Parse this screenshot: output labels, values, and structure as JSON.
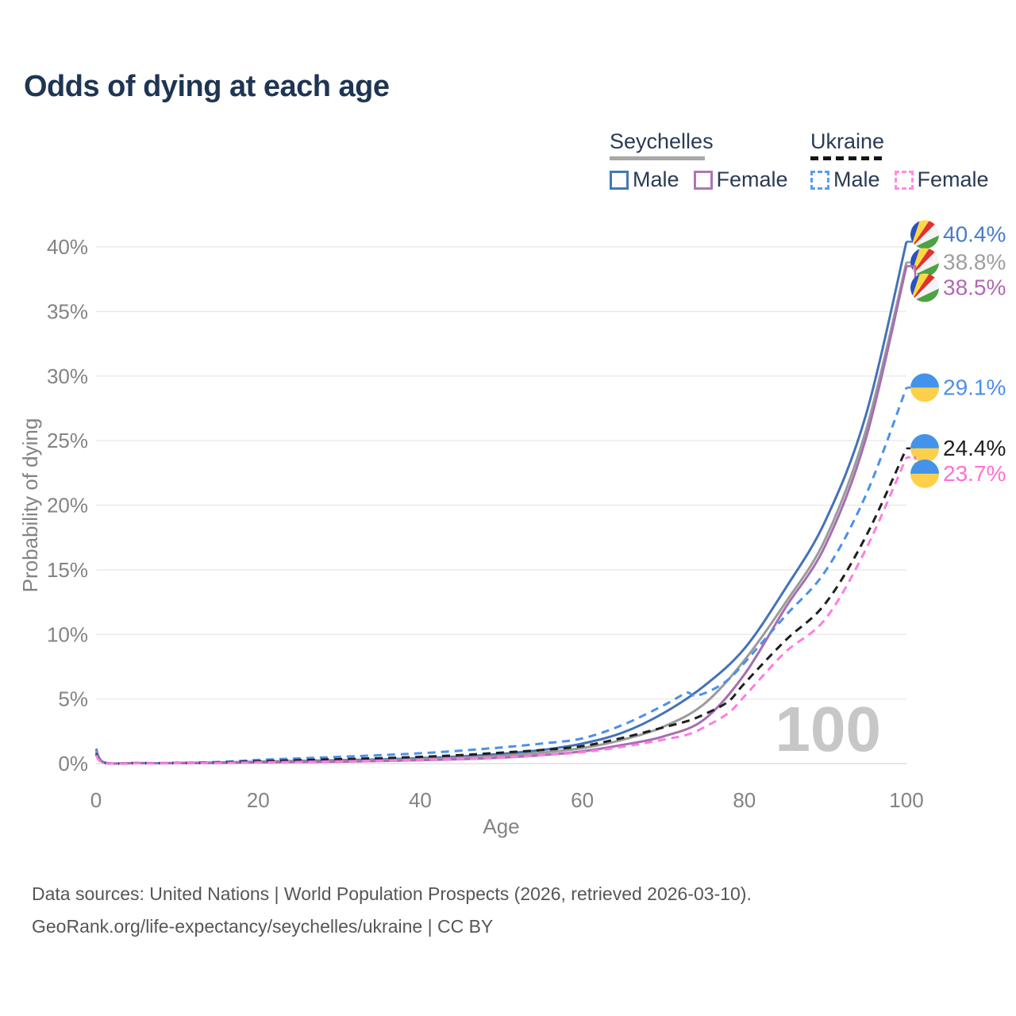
{
  "title": "Odds of dying at each age",
  "legend": {
    "groups": [
      {
        "name": "Seychelles",
        "line_style": "solid",
        "underline_color": "#a8a8a8",
        "items": [
          {
            "label": "Male",
            "color": "#4577b9",
            "dashed": false
          },
          {
            "label": "Female",
            "color": "#b073b8",
            "dashed": false
          }
        ]
      },
      {
        "name": "Ukraine",
        "line_style": "dashed",
        "underline_color": "#151515",
        "items": [
          {
            "label": "Male",
            "color": "#5b9bf5",
            "dashed": true
          },
          {
            "label": "Female",
            "color": "#ff8ae4",
            "dashed": true
          }
        ]
      }
    ]
  },
  "watermark": "100",
  "footer": {
    "line1": "Data sources: United Nations | World Population Prospects (2026, retrieved 2026-03-10).",
    "line2": "GeoRank.org/life-expectancy/seychelles/ukraine | CC BY"
  },
  "chart_data": {
    "type": "line",
    "title": "Odds of dying at each age",
    "xlabel": "Age",
    "ylabel": "Probability of dying",
    "xlim": [
      0,
      100
    ],
    "ylim": [
      0,
      40
    ],
    "grid": true,
    "legend_position": "top-right",
    "xticks": [
      0,
      20,
      40,
      60,
      80,
      100
    ],
    "yticks": [
      {
        "value": 0,
        "label": "0%"
      },
      {
        "value": 5,
        "label": "5%"
      },
      {
        "value": 10,
        "label": "10%"
      },
      {
        "value": 15,
        "label": "15%"
      },
      {
        "value": 20,
        "label": "20%"
      },
      {
        "value": 25,
        "label": "25%"
      },
      {
        "value": 30,
        "label": "30%"
      },
      {
        "value": 35,
        "label": "35%"
      },
      {
        "value": 40,
        "label": "40%"
      }
    ],
    "axis_color": "#838383",
    "grid_color": "#ebebeb",
    "series": [
      {
        "name": "Seychelles Male",
        "country": "Seychelles",
        "sex": "male",
        "color": "#4472b8",
        "dashed": false,
        "points": [
          [
            0,
            1.15
          ],
          [
            1,
            0.1
          ],
          [
            5,
            0.04
          ],
          [
            10,
            0.04
          ],
          [
            15,
            0.08
          ],
          [
            20,
            0.15
          ],
          [
            25,
            0.2
          ],
          [
            30,
            0.26
          ],
          [
            35,
            0.32
          ],
          [
            40,
            0.42
          ],
          [
            45,
            0.55
          ],
          [
            50,
            0.75
          ],
          [
            55,
            1.05
          ],
          [
            60,
            1.55
          ],
          [
            65,
            2.4
          ],
          [
            70,
            3.9
          ],
          [
            75,
            6.0
          ],
          [
            80,
            8.9
          ],
          [
            85,
            13.5
          ],
          [
            90,
            18.8
          ],
          [
            95,
            27.0
          ],
          [
            100,
            40.4
          ]
        ]
      },
      {
        "name": "Seychelles Both sexes",
        "country": "Seychelles",
        "sex": "both",
        "color": "#9b9b9b",
        "dashed": false,
        "points": [
          [
            0,
            1.0
          ],
          [
            1,
            0.09
          ],
          [
            5,
            0.035
          ],
          [
            10,
            0.035
          ],
          [
            15,
            0.06
          ],
          [
            20,
            0.12
          ],
          [
            25,
            0.16
          ],
          [
            30,
            0.2
          ],
          [
            35,
            0.26
          ],
          [
            40,
            0.33
          ],
          [
            45,
            0.44
          ],
          [
            50,
            0.6
          ],
          [
            55,
            0.85
          ],
          [
            60,
            1.2
          ],
          [
            65,
            1.85
          ],
          [
            70,
            2.85
          ],
          [
            75,
            4.6
          ],
          [
            80,
            8.0
          ],
          [
            85,
            12.4
          ],
          [
            90,
            17.4
          ],
          [
            95,
            25.8
          ],
          [
            100,
            38.8
          ]
        ]
      },
      {
        "name": "Seychelles Female",
        "country": "Seychelles",
        "sex": "female",
        "color": "#a76db1",
        "dashed": false,
        "points": [
          [
            0,
            0.9
          ],
          [
            1,
            0.08
          ],
          [
            5,
            0.03
          ],
          [
            10,
            0.03
          ],
          [
            15,
            0.05
          ],
          [
            20,
            0.09
          ],
          [
            25,
            0.12
          ],
          [
            30,
            0.15
          ],
          [
            35,
            0.2
          ],
          [
            40,
            0.26
          ],
          [
            45,
            0.34
          ],
          [
            50,
            0.46
          ],
          [
            55,
            0.65
          ],
          [
            60,
            0.95
          ],
          [
            65,
            1.45
          ],
          [
            70,
            2.1
          ],
          [
            75,
            3.4
          ],
          [
            80,
            6.9
          ],
          [
            85,
            12.0
          ],
          [
            90,
            16.9
          ],
          [
            95,
            25.2
          ],
          [
            100,
            38.5
          ]
        ]
      },
      {
        "name": "Ukraine Male",
        "country": "Ukraine",
        "sex": "male",
        "color": "#4b90ea",
        "dashed": true,
        "points": [
          [
            0,
            0.85
          ],
          [
            1,
            0.07
          ],
          [
            5,
            0.04
          ],
          [
            10,
            0.05
          ],
          [
            15,
            0.12
          ],
          [
            20,
            0.28
          ],
          [
            25,
            0.4
          ],
          [
            30,
            0.52
          ],
          [
            35,
            0.65
          ],
          [
            40,
            0.8
          ],
          [
            45,
            1.0
          ],
          [
            50,
            1.25
          ],
          [
            55,
            1.55
          ],
          [
            60,
            1.95
          ],
          [
            65,
            3.0
          ],
          [
            70,
            4.5
          ],
          [
            72,
            5.2
          ],
          [
            73,
            5.5
          ],
          [
            74,
            5.25
          ],
          [
            76,
            5.7
          ],
          [
            78,
            6.5
          ],
          [
            80,
            7.8
          ],
          [
            85,
            11.4
          ],
          [
            90,
            14.9
          ],
          [
            95,
            20.8
          ],
          [
            100,
            29.1
          ]
        ]
      },
      {
        "name": "Ukraine Both sexes",
        "country": "Ukraine",
        "sex": "both",
        "color": "#1f1f1f",
        "dashed": true,
        "points": [
          [
            0,
            0.75
          ],
          [
            1,
            0.06
          ],
          [
            5,
            0.03
          ],
          [
            10,
            0.04
          ],
          [
            15,
            0.08
          ],
          [
            20,
            0.18
          ],
          [
            25,
            0.26
          ],
          [
            30,
            0.34
          ],
          [
            35,
            0.42
          ],
          [
            40,
            0.52
          ],
          [
            45,
            0.66
          ],
          [
            50,
            0.85
          ],
          [
            55,
            1.05
          ],
          [
            60,
            1.35
          ],
          [
            65,
            2.0
          ],
          [
            70,
            2.8
          ],
          [
            73,
            3.3
          ],
          [
            75,
            3.8
          ],
          [
            78,
            4.8
          ],
          [
            80,
            6.2
          ],
          [
            85,
            9.5
          ],
          [
            90,
            12.4
          ],
          [
            95,
            17.6
          ],
          [
            100,
            24.4
          ]
        ]
      },
      {
        "name": "Ukraine Female",
        "country": "Ukraine",
        "sex": "female",
        "color": "#ff7ce1",
        "dashed": true,
        "points": [
          [
            0,
            0.65
          ],
          [
            1,
            0.05
          ],
          [
            5,
            0.025
          ],
          [
            10,
            0.03
          ],
          [
            15,
            0.05
          ],
          [
            20,
            0.1
          ],
          [
            25,
            0.13
          ],
          [
            30,
            0.17
          ],
          [
            35,
            0.22
          ],
          [
            40,
            0.28
          ],
          [
            45,
            0.36
          ],
          [
            50,
            0.48
          ],
          [
            55,
            0.65
          ],
          [
            60,
            0.88
          ],
          [
            65,
            1.3
          ],
          [
            70,
            1.85
          ],
          [
            73,
            2.25
          ],
          [
            75,
            2.8
          ],
          [
            78,
            3.9
          ],
          [
            80,
            5.2
          ],
          [
            85,
            8.6
          ],
          [
            90,
            11.2
          ],
          [
            95,
            16.6
          ],
          [
            100,
            23.7
          ]
        ]
      }
    ],
    "end_labels": [
      {
        "label": "40.4%",
        "value": 40.4,
        "color": "#4a7cc8",
        "flag": "seychelles",
        "dashed": false
      },
      {
        "label": "38.8%",
        "value": 38.8,
        "color": "#9e9e9e",
        "flag": "seychelles",
        "dashed": false
      },
      {
        "label": "38.5%",
        "value": 38.5,
        "color": "#b168b4",
        "flag": "seychelles",
        "dashed": false
      },
      {
        "label": "29.1%",
        "value": 29.1,
        "color": "#4b90ea",
        "flag": "ukraine",
        "dashed": true
      },
      {
        "label": "24.4%",
        "value": 24.4,
        "color": "#1f1f1f",
        "flag": "ukraine",
        "dashed": true
      },
      {
        "label": "23.7%",
        "value": 23.7,
        "color": "#ff6fd8",
        "flag": "ukraine",
        "dashed": true
      }
    ],
    "flag_colors": {
      "seychelles": {
        "blue": "#2a52be",
        "yellow": "#ffd944",
        "red": "#dd3333",
        "white": "#f4f4f4",
        "green": "#4da244"
      },
      "ukraine": {
        "blue": "#4293e9",
        "yellow": "#fdd04b"
      }
    }
  }
}
